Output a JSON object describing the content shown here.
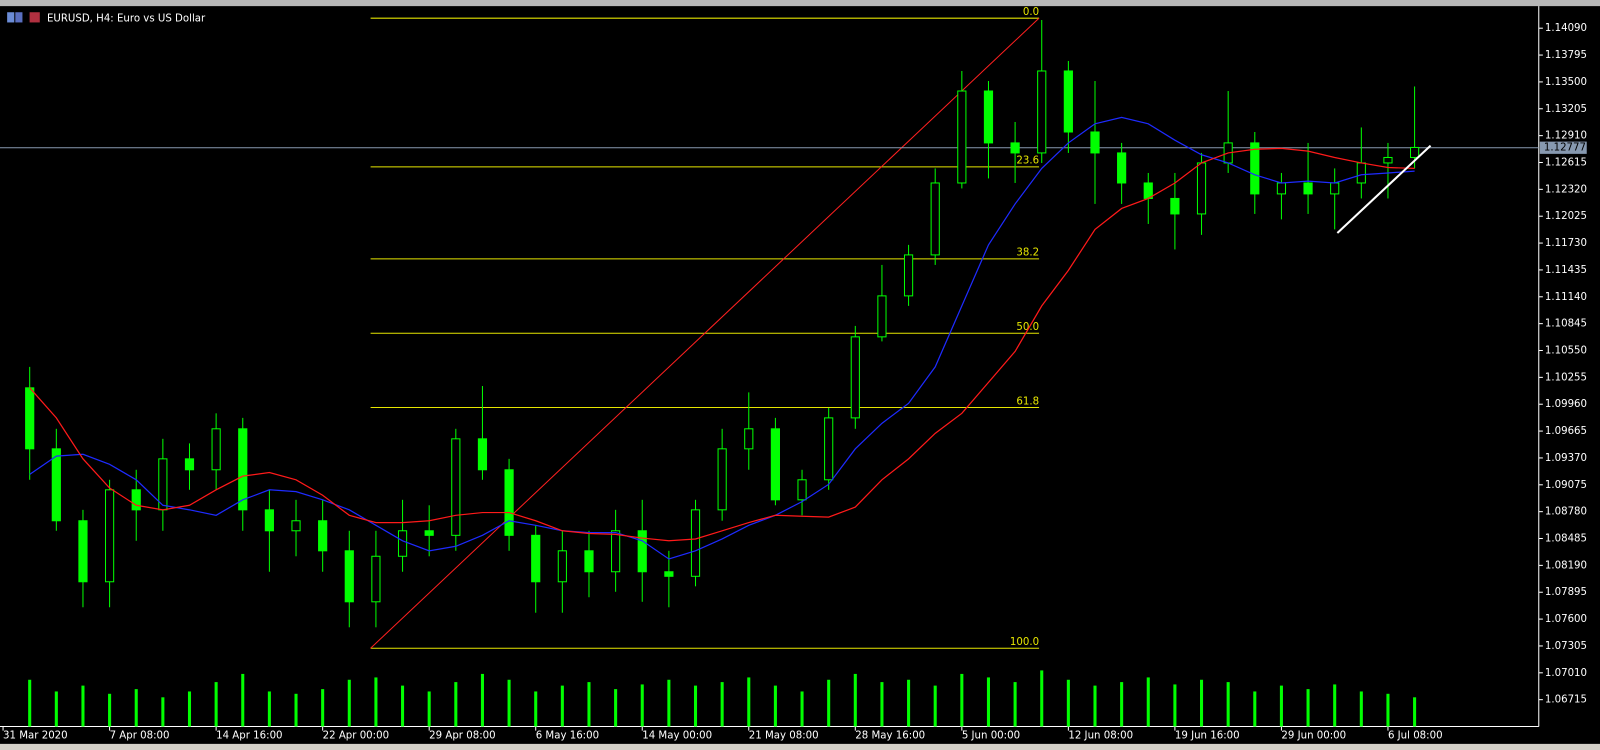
{
  "chart_data": {
    "type": "candlestick",
    "title": "EURUSD, H4:  Euro vs US Dollar",
    "x": [
      1,
      2,
      3,
      4,
      5,
      6,
      7,
      8,
      9,
      10,
      11,
      12,
      13,
      14,
      15,
      16,
      17,
      18,
      19,
      20,
      21,
      22,
      23,
      24,
      25,
      26,
      27,
      28,
      29,
      30,
      31,
      32,
      33,
      34,
      35,
      36,
      37,
      38,
      39,
      40,
      41,
      42,
      43,
      44,
      45,
      46,
      47,
      48,
      49,
      50,
      51,
      52,
      53
    ],
    "open": [
      1.1014,
      1.0947,
      1.0868,
      1.0801,
      1.0902,
      1.088,
      1.0936,
      1.0924,
      1.0969,
      1.088,
      1.0857,
      1.0868,
      1.0835,
      1.0779,
      1.0829,
      1.0857,
      1.0852,
      1.0958,
      1.0924,
      1.0852,
      1.0801,
      1.0835,
      1.0812,
      1.0857,
      1.0812,
      1.0807,
      1.088,
      1.0947,
      1.0969,
      1.0891,
      1.0913,
      1.0981,
      1.107,
      1.1115,
      1.116,
      1.1239,
      1.134,
      1.1283,
      1.1272,
      1.1362,
      1.1295,
      1.1272,
      1.1239,
      1.1222,
      1.1205,
      1.1261,
      1.1283,
      1.1227,
      1.1239,
      1.1227,
      1.1239,
      1.1261,
      1.1267
    ],
    "high": [
      1.1037,
      1.0969,
      1.088,
      1.0913,
      1.0924,
      1.0958,
      1.0953,
      1.0986,
      1.0981,
      1.0902,
      1.0891,
      1.0891,
      1.0857,
      1.0857,
      1.0891,
      1.0885,
      1.0969,
      1.1016,
      1.0936,
      1.0863,
      1.0857,
      1.0857,
      1.088,
      1.0891,
      1.0835,
      1.0891,
      1.0969,
      1.1009,
      1.0981,
      1.0924,
      1.0992,
      1.1082,
      1.1149,
      1.1171,
      1.1255,
      1.1362,
      1.1351,
      1.1306,
      1.1418,
      1.1373,
      1.1351,
      1.1283,
      1.125,
      1.125,
      1.1272,
      1.134,
      1.1295,
      1.125,
      1.1283,
      1.1255,
      1.13,
      1.1283,
      1.1345
    ],
    "low": [
      1.0913,
      1.0857,
      1.0773,
      1.0773,
      1.0846,
      1.0857,
      1.0902,
      1.0902,
      1.0857,
      1.0812,
      1.0829,
      1.0812,
      1.0751,
      1.0751,
      1.0812,
      1.0829,
      1.0835,
      1.0913,
      1.0835,
      1.0767,
      1.0767,
      1.0784,
      1.079,
      1.0779,
      1.0773,
      1.0796,
      1.0868,
      1.0924,
      1.0885,
      1.0874,
      1.0902,
      1.0969,
      1.1065,
      1.1104,
      1.1149,
      1.1233,
      1.1244,
      1.1239,
      1.1261,
      1.1272,
      1.1216,
      1.1216,
      1.1194,
      1.1166,
      1.1182,
      1.125,
      1.1205,
      1.1199,
      1.1205,
      1.1188,
      1.1222,
      1.1222,
      1.1255
    ],
    "close": [
      1.0947,
      1.0868,
      1.0801,
      1.0902,
      1.088,
      1.0936,
      1.0924,
      1.0969,
      1.088,
      1.0857,
      1.0868,
      1.0835,
      1.0779,
      1.0829,
      1.0857,
      1.0852,
      1.0958,
      1.0924,
      1.0852,
      1.0801,
      1.0835,
      1.0812,
      1.0857,
      1.0812,
      1.0807,
      1.088,
      1.0947,
      1.0969,
      1.0891,
      1.0913,
      1.0981,
      1.107,
      1.1115,
      1.116,
      1.1239,
      1.134,
      1.1283,
      1.1272,
      1.1362,
      1.1295,
      1.1272,
      1.1239,
      1.1222,
      1.1205,
      1.1261,
      1.1283,
      1.1227,
      1.1239,
      1.1227,
      1.1239,
      1.1261,
      1.1267,
      1.1278
    ],
    "volume": [
      40,
      30,
      35,
      28,
      32,
      25,
      30,
      38,
      45,
      30,
      28,
      32,
      40,
      42,
      35,
      30,
      38,
      45,
      40,
      30,
      35,
      38,
      32,
      36,
      40,
      35,
      38,
      42,
      35,
      30,
      40,
      45,
      38,
      40,
      35,
      45,
      42,
      38,
      48,
      40,
      35,
      38,
      42,
      36,
      40,
      38,
      30,
      35,
      32,
      36,
      30,
      28,
      25
    ],
    "candle_color": "#00ff00",
    "volume_color": "#00ff00",
    "moving_averages": [
      {
        "color": "#1e2bff",
        "values": [
          1.0919,
          1.0939,
          1.0941,
          1.093,
          1.0913,
          1.0885,
          1.088,
          1.0874,
          1.0891,
          1.0902,
          1.09,
          1.0891,
          1.088,
          1.0863,
          1.0846,
          1.0835,
          1.084,
          1.0852,
          1.0868,
          1.0863,
          1.0857,
          1.0855,
          1.0855,
          1.0846,
          1.0826,
          1.0835,
          1.0848,
          1.0863,
          1.0874,
          1.0889,
          1.0908,
          1.0947,
          1.0975,
          1.0997,
          1.1037,
          1.1104,
          1.1171,
          1.1216,
          1.1255,
          1.1283,
          1.1304,
          1.1311,
          1.1304,
          1.1286,
          1.127,
          1.1261,
          1.1248,
          1.1239,
          1.1241,
          1.1239,
          1.1248,
          1.125,
          1.1252
        ]
      },
      {
        "color": "#ff1a1a",
        "values": [
          1.1014,
          1.0981,
          1.0936,
          1.0904,
          1.0885,
          1.088,
          1.0885,
          1.0902,
          1.0917,
          1.0921,
          1.0913,
          1.0896,
          1.0874,
          1.0866,
          1.0866,
          1.0868,
          1.0874,
          1.0877,
          1.0877,
          1.0868,
          1.0857,
          1.0854,
          1.0853,
          1.0849,
          1.0846,
          1.0848,
          1.0857,
          1.0866,
          1.0874,
          1.0873,
          1.0872,
          1.0883,
          1.0913,
          1.0936,
          1.0964,
          1.0986,
          1.102,
          1.1054,
          1.1104,
          1.1143,
          1.1188,
          1.1211,
          1.1222,
          1.1239,
          1.1261,
          1.1272,
          1.1276,
          1.1277,
          1.1274,
          1.1267,
          1.1261,
          1.1256,
          1.1255
        ]
      }
    ],
    "fib": {
      "high": 1.142,
      "low": 1.0728,
      "x_start": 13.8,
      "x_end": 38.9,
      "color": "#e6e600",
      "trend_color": "#ff2020",
      "levels": [
        {
          "value": 0,
          "label": "0.0"
        },
        23.6,
        38.2,
        {
          "value": 50,
          "label": "50.0"
        },
        61.8,
        {
          "value": 100,
          "label": "100.0"
        }
      ]
    },
    "trendline": {
      "x": [
        50.1,
        53.6
      ],
      "values": [
        1.1184,
        1.128
      ],
      "color": "#ffffff"
    },
    "last_price": 1.12777,
    "xlim": [
      -0.1,
      57.7
    ],
    "ylim": [
      1.0642,
      1.1431
    ],
    "xticks": [
      {
        "value": 0,
        "label": "31 Mar 2020"
      },
      {
        "value": 4,
        "label": "7 Apr 08:00"
      },
      {
        "value": 8,
        "label": "14 Apr 16:00"
      },
      {
        "value": 12,
        "label": "22 Apr 00:00"
      },
      {
        "value": 16,
        "label": "29 Apr 08:00"
      },
      {
        "value": 20,
        "label": "6 May 16:00"
      },
      {
        "value": 24,
        "label": "14 May 00:00"
      },
      {
        "value": 28,
        "label": "21 May 08:00"
      },
      {
        "value": 32,
        "label": "28 May 16:00"
      },
      {
        "value": 36,
        "label": "5 Jun 00:00"
      },
      {
        "value": 40,
        "label": "12 Jun 08:00"
      },
      {
        "value": 44,
        "label": "19 Jun 16:00"
      },
      {
        "value": 48,
        "label": "29 Jun 00:00"
      },
      {
        "value": 52,
        "label": "6 Jul 08:00"
      }
    ],
    "yticks": [
      {
        "value": 1.1409,
        "label": "1.14090"
      },
      1.13795,
      {
        "value": 1.135,
        "label": "1.13500"
      },
      1.13205,
      {
        "value": 1.1291,
        "label": "1.12910"
      },
      1.12615,
      {
        "value": 1.1232,
        "label": "1.12320"
      },
      1.12025,
      {
        "value": 1.1173,
        "label": "1.11730"
      },
      1.11435,
      {
        "value": 1.1114,
        "label": "1.11140"
      },
      1.10845,
      {
        "value": 1.1055,
        "label": "1.10550"
      },
      1.10255,
      {
        "value": 1.0996,
        "label": "1.09960"
      },
      1.09665,
      {
        "value": 1.0937,
        "label": "1.09370"
      },
      1.09075,
      {
        "value": 1.0878,
        "label": "1.08780"
      },
      1.08485,
      {
        "value": 1.0819,
        "label": "1.08190"
      },
      1.07895,
      {
        "value": 1.076,
        "label": "1.07600"
      },
      1.07305,
      {
        "value": 1.0701,
        "label": "1.07010"
      },
      1.06715
    ]
  }
}
